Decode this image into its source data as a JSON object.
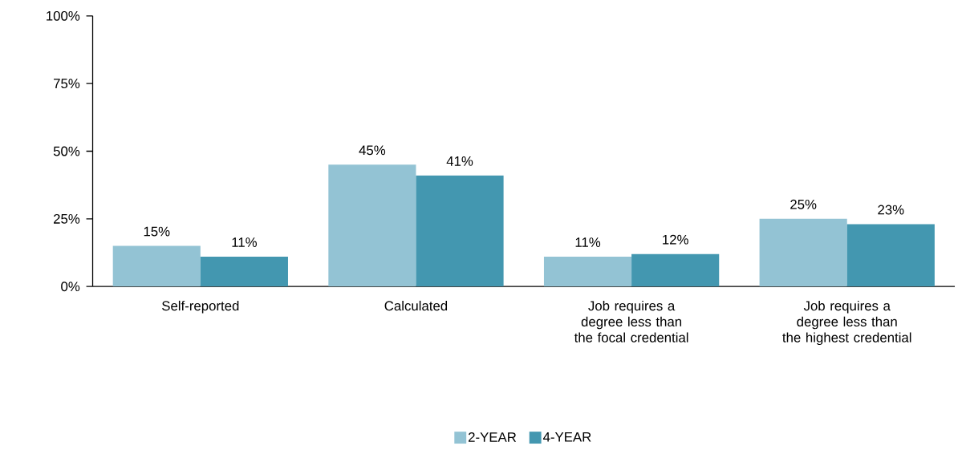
{
  "chart_data": {
    "type": "bar",
    "categories": [
      "Self-reported",
      "Calculated",
      "Job requires a degree less than the focal credential",
      "Job requires a degree less than the highest credential"
    ],
    "series": [
      {
        "name": "2-YEAR",
        "color": "#93c3d4",
        "values": [
          15,
          45,
          11,
          25
        ],
        "value_labels": [
          "15%",
          "45%",
          "11%",
          "25%"
        ]
      },
      {
        "name": "4-YEAR",
        "color": "#4397b0",
        "values": [
          11,
          41,
          12,
          23
        ],
        "value_labels": [
          "11%",
          "41%",
          "12%",
          "23%"
        ]
      }
    ],
    "ylim": [
      0,
      100
    ],
    "yticks": [
      {
        "value": 0,
        "label": "0%"
      },
      {
        "value": 25,
        "label": "25%"
      },
      {
        "value": 50,
        "label": "50%"
      },
      {
        "value": 75,
        "label": "75%"
      },
      {
        "value": 100,
        "label": "100%"
      }
    ],
    "grid": false,
    "legend": "bottom"
  }
}
